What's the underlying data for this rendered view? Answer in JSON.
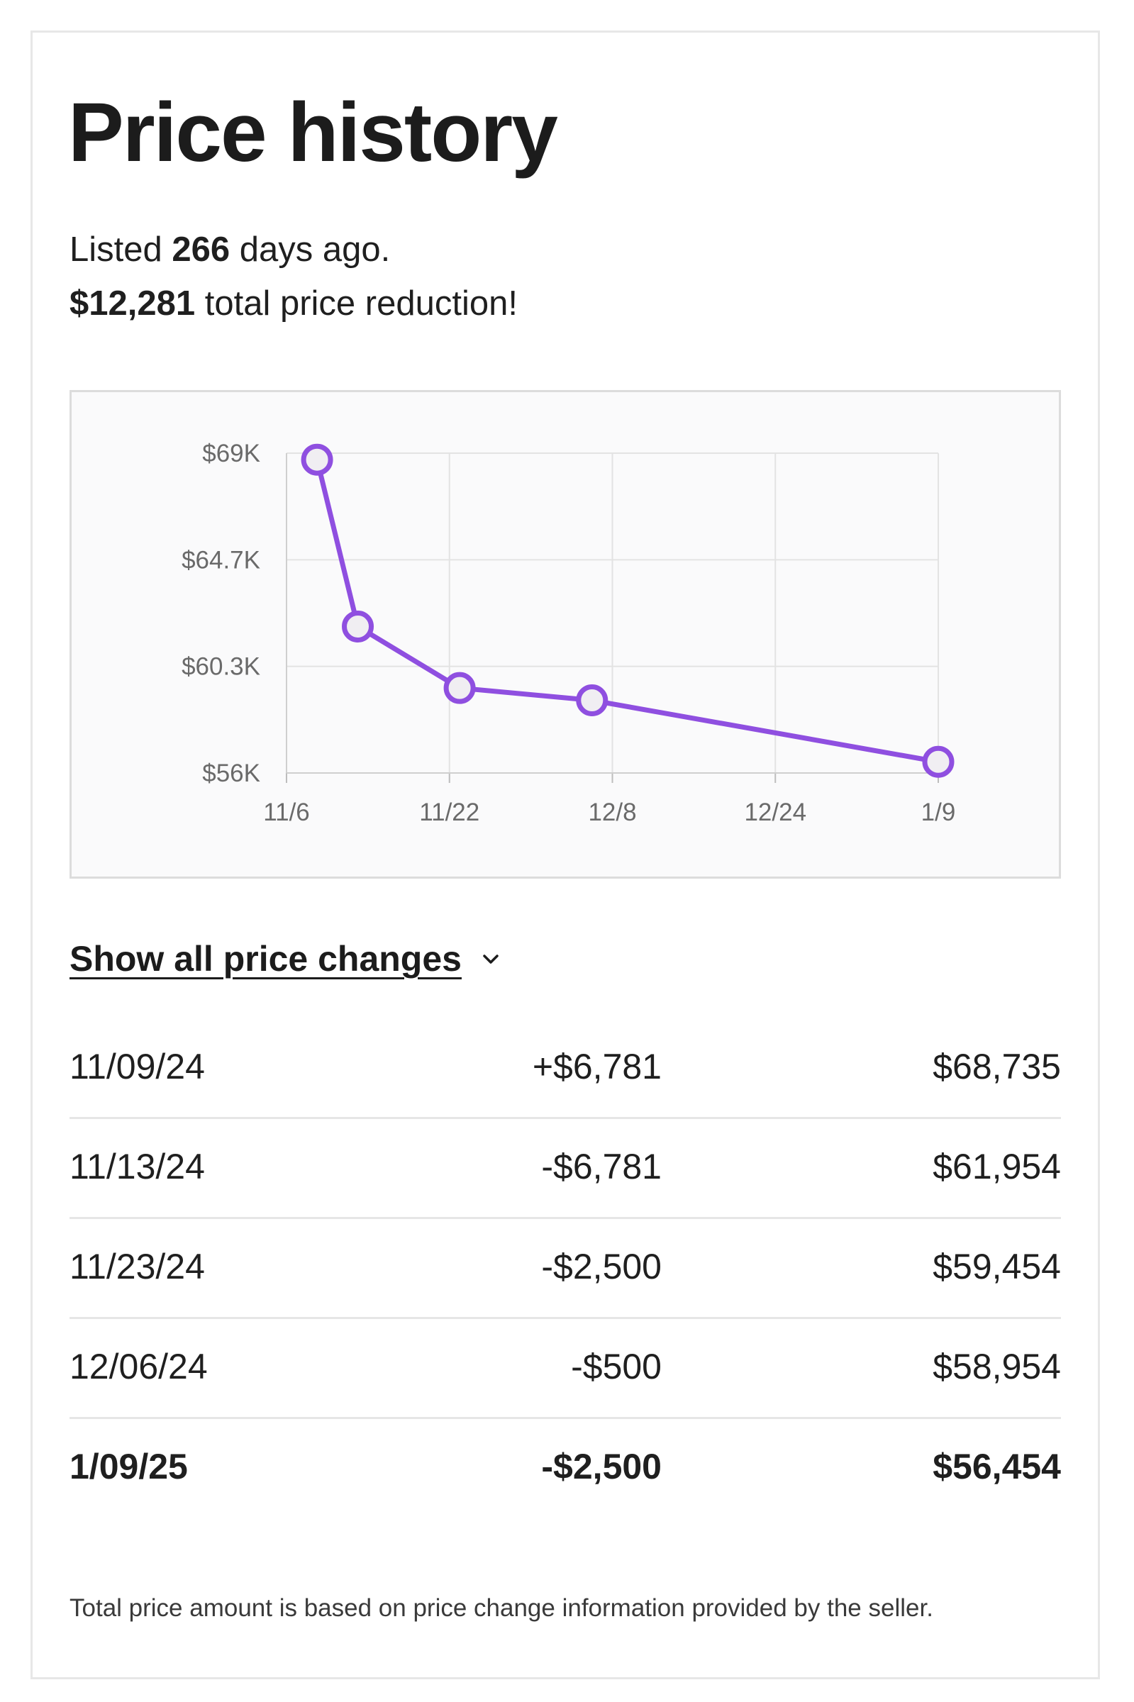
{
  "title": "Price history",
  "summary": {
    "listed_prefix": "Listed",
    "listed_days": "266",
    "listed_suffix": "days ago.",
    "reduction_amount": "$12,281",
    "reduction_suffix": "total price reduction!"
  },
  "chart_data": {
    "type": "line",
    "x_ticks": [
      "11/6",
      "11/22",
      "12/8",
      "12/24",
      "1/9"
    ],
    "y_ticks": [
      "$69K",
      "$64.7K",
      "$60.3K",
      "$56K"
    ],
    "x": [
      "11/09/24",
      "11/13/24",
      "11/23/24",
      "12/06/24",
      "1/09/25"
    ],
    "x_days_from_nov6": [
      3,
      7,
      17,
      30,
      64
    ],
    "values": [
      68735,
      61954,
      59454,
      58954,
      56454
    ],
    "xlim_days_from_nov6": [
      0,
      64
    ],
    "ylim": [
      56000,
      69000
    ],
    "grid": true,
    "line_color": "#8f4fe0",
    "marker_fill": "#f0eef2"
  },
  "toggle": {
    "label": "Show all price changes",
    "icon": "chevron-down-icon"
  },
  "rows": [
    {
      "date": "11/09/24",
      "change": "+$6,781",
      "price": "$68,735"
    },
    {
      "date": "11/13/24",
      "change": "-$6,781",
      "price": "$61,954"
    },
    {
      "date": "11/23/24",
      "change": "-$2,500",
      "price": "$59,454"
    },
    {
      "date": "12/06/24",
      "change": "-$500",
      "price": "$58,954"
    },
    {
      "date": "1/09/25",
      "change": "-$2,500",
      "price": "$56,454"
    }
  ],
  "footnote": "Total price amount is based on price change information provided by the seller."
}
